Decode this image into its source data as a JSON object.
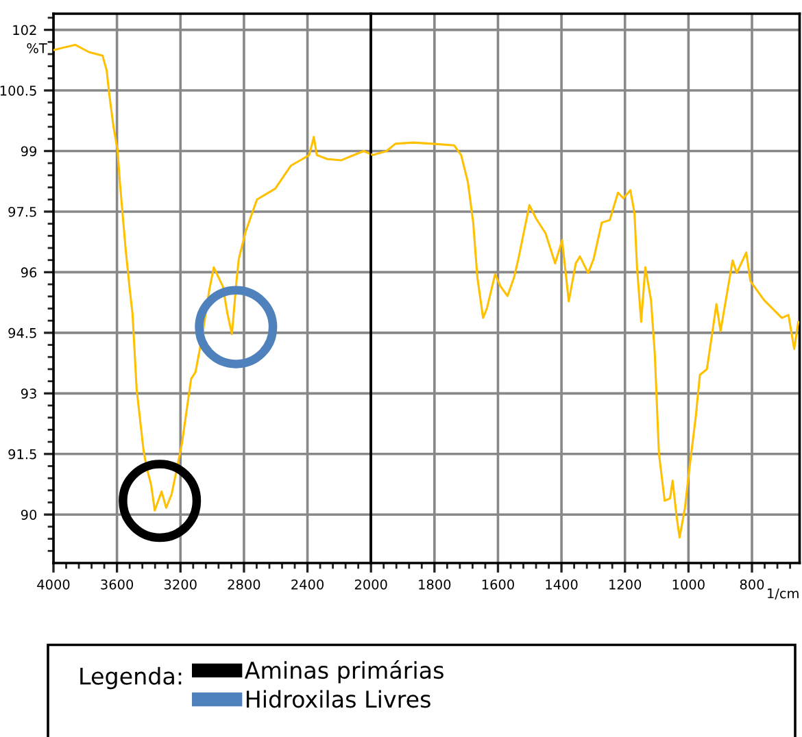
{
  "chart_data": [
    {
      "type": "line",
      "ylabel": "%T",
      "legend_title": "Legenda:",
      "xlim": [
        4000,
        2000
      ],
      "ylim": [
        88.8,
        102.4
      ],
      "xticks": [
        4000,
        3600,
        3200,
        2800,
        2400,
        2000,
        {
          "value": 3920,
          "label": null
        },
        {
          "value": 3840,
          "label": null
        },
        {
          "value": 3760,
          "label": null
        },
        {
          "value": 3680,
          "label": null
        },
        {
          "value": 3520,
          "label": null
        },
        {
          "value": 3440,
          "label": null
        },
        {
          "value": 3360,
          "label": null
        },
        {
          "value": 3280,
          "label": null
        },
        {
          "value": 3120,
          "label": null
        },
        {
          "value": 3040,
          "label": null
        },
        {
          "value": 2960,
          "label": null
        },
        {
          "value": 2880,
          "label": null
        },
        {
          "value": 2720,
          "label": null
        },
        {
          "value": 2640,
          "label": null
        },
        {
          "value": 2560,
          "label": null
        },
        {
          "value": 2480,
          "label": null
        },
        {
          "value": 2320,
          "label": null
        },
        {
          "value": 2240,
          "label": null
        },
        {
          "value": 2160,
          "label": null
        },
        {
          "value": 2080,
          "label": null
        }
      ],
      "yticks": [
        90,
        91.5,
        93,
        94.5,
        96,
        97.5,
        99,
        100.5,
        102,
        {
          "value": 89.1,
          "label": null
        },
        {
          "value": 89.4,
          "label": null
        },
        {
          "value": 89.7,
          "label": null
        },
        {
          "value": 90.3,
          "label": null
        },
        {
          "value": 90.6,
          "label": null
        },
        {
          "value": 90.9,
          "label": null
        },
        {
          "value": 91.2,
          "label": null
        },
        {
          "value": 91.8,
          "label": null
        },
        {
          "value": 92.1,
          "label": null
        },
        {
          "value": 92.4,
          "label": null
        },
        {
          "value": 92.7,
          "label": null
        },
        {
          "value": 93.3,
          "label": null
        },
        {
          "value": 93.6,
          "label": null
        },
        {
          "value": 93.9,
          "label": null
        },
        {
          "value": 94.2,
          "label": null
        },
        {
          "value": 94.8,
          "label": null
        },
        {
          "value": 95.1,
          "label": null
        },
        {
          "value": 95.4,
          "label": null
        },
        {
          "value": 95.7,
          "label": null
        },
        {
          "value": 96.3,
          "label": null
        },
        {
          "value": 96.6,
          "label": null
        },
        {
          "value": 96.9,
          "label": null
        },
        {
          "value": 97.2,
          "label": null
        },
        {
          "value": 97.8,
          "label": null
        },
        {
          "value": 98.1,
          "label": null
        },
        {
          "value": 98.4,
          "label": null
        },
        {
          "value": 98.7,
          "label": null
        },
        {
          "value": 99.3,
          "label": null
        },
        {
          "value": 99.6,
          "label": null
        },
        {
          "value": 99.9,
          "label": null
        },
        {
          "value": 100.2,
          "label": null
        },
        {
          "value": 100.8,
          "label": null
        },
        {
          "value": 101.1,
          "label": null
        },
        {
          "value": 101.4,
          "label": null
        },
        {
          "value": 101.7,
          "label": null
        },
        {
          "value": 102.3,
          "label": null
        }
      ],
      "grid": true,
      "legend": "bottom",
      "series": [
        {
          "color": "#ffc000",
          "marker": "none",
          "line_style": "solid",
          "x": [
            4000,
            3948,
            3863,
            3777,
            3691,
            3665,
            3648,
            3622,
            3597,
            3579,
            3545,
            3519,
            3502,
            3476,
            3433,
            3414,
            3385,
            3362,
            3319,
            3290,
            3256,
            3233,
            3191,
            3133,
            3105,
            3062,
            3019,
            2990,
            2933,
            2904,
            2876,
            2847,
            2833,
            2790,
            2718,
            2675,
            2603,
            2504,
            2432,
            2389,
            2360,
            2341,
            2275,
            2189,
            2046,
            2000
          ],
          "values": [
            101.5,
            101.55,
            101.63,
            101.45,
            101.36,
            101.0,
            100.39,
            99.6,
            99.04,
            98.1,
            96.55,
            95.55,
            94.97,
            93.1,
            91.6,
            91.18,
            90.74,
            90.1,
            90.57,
            90.17,
            90.5,
            90.94,
            91.75,
            93.36,
            93.53,
            94.44,
            95.55,
            96.12,
            95.65,
            94.97,
            94.47,
            95.78,
            96.32,
            97.0,
            97.8,
            97.9,
            98.07,
            98.64,
            98.8,
            98.9,
            99.35,
            98.9,
            98.8,
            98.77,
            99.0,
            98.92
          ]
        },
        {
          "type": "scatter",
          "name": "Aminas primárias",
          "color": "#000000",
          "marker": "circle",
          "x": [
            3330
          ],
          "values": [
            90.34
          ]
        },
        {
          "type": "scatter",
          "name": "Hidroxilas Livres",
          "color": "#4f81bd",
          "marker": "circle",
          "x": [
            2850
          ],
          "values": [
            94.64
          ]
        }
      ]
    },
    {
      "type": "line",
      "xlabel": "1/cm",
      "xlim": [
        2000,
        650
      ],
      "ylim": [
        88.8,
        102.4
      ],
      "tick_labels": "x",
      "xticks": [
        1800,
        1600,
        1400,
        1200,
        1000,
        800,
        {
          "value": 1960,
          "label": null
        },
        {
          "value": 1920,
          "label": null
        },
        {
          "value": 1880,
          "label": null
        },
        {
          "value": 1840,
          "label": null
        },
        {
          "value": 1760,
          "label": null
        },
        {
          "value": 1720,
          "label": null
        },
        {
          "value": 1680,
          "label": null
        },
        {
          "value": 1640,
          "label": null
        },
        {
          "value": 1560,
          "label": null
        },
        {
          "value": 1520,
          "label": null
        },
        {
          "value": 1480,
          "label": null
        },
        {
          "value": 1440,
          "label": null
        },
        {
          "value": 1360,
          "label": null
        },
        {
          "value": 1320,
          "label": null
        },
        {
          "value": 1280,
          "label": null
        },
        {
          "value": 1240,
          "label": null
        },
        {
          "value": 1160,
          "label": null
        },
        {
          "value": 1120,
          "label": null
        },
        {
          "value": 1080,
          "label": null
        },
        {
          "value": 1040,
          "label": null
        },
        {
          "value": 960,
          "label": null
        },
        {
          "value": 920,
          "label": null
        },
        {
          "value": 880,
          "label": null
        },
        {
          "value": 840,
          "label": null
        },
        {
          "value": 760,
          "label": null
        },
        {
          "value": 720,
          "label": null
        },
        {
          "value": 680,
          "label": null
        }
      ],
      "yticks": [
        90,
        91.5,
        93,
        94.5,
        96,
        97.5,
        99,
        100.5,
        102
      ],
      "grid": true,
      "series": [
        {
          "color": "#ffc000",
          "marker": "none",
          "line_style": "solid",
          "x": [
            2000,
            1994,
            1951,
            1923,
            1867,
            1806,
            1738,
            1716,
            1695,
            1678,
            1665,
            1647,
            1635,
            1609,
            1592,
            1570,
            1549,
            1536,
            1501,
            1480,
            1450,
            1420,
            1398,
            1377,
            1355,
            1342,
            1316,
            1299,
            1273,
            1248,
            1222,
            1205,
            1183,
            1170,
            1162,
            1149,
            1136,
            1118,
            1106,
            1093,
            1075,
            1058,
            1050,
            1037,
            1028,
            1011,
            998,
            977,
            964,
            942,
            925,
            912,
            899,
            861,
            848,
            818,
            805,
            762,
            706,
            685,
            667,
            654
          ],
          "values": [
            98.92,
            98.9,
            99.0,
            99.18,
            99.21,
            99.18,
            99.14,
            98.9,
            98.24,
            97.23,
            95.88,
            94.87,
            95.1,
            95.95,
            95.65,
            95.41,
            95.88,
            96.32,
            97.66,
            97.33,
            96.96,
            96.22,
            96.79,
            95.28,
            96.22,
            96.39,
            95.98,
            96.32,
            97.23,
            97.29,
            97.97,
            97.83,
            98.03,
            97.46,
            96.12,
            94.77,
            96.12,
            95.31,
            93.97,
            91.51,
            90.34,
            90.4,
            90.84,
            89.93,
            89.43,
            90.17,
            91.08,
            92.42,
            93.46,
            93.6,
            94.5,
            95.21,
            94.54,
            96.29,
            95.98,
            96.49,
            95.78,
            95.31,
            94.87,
            94.94,
            94.1,
            94.77
          ]
        }
      ]
    }
  ]
}
